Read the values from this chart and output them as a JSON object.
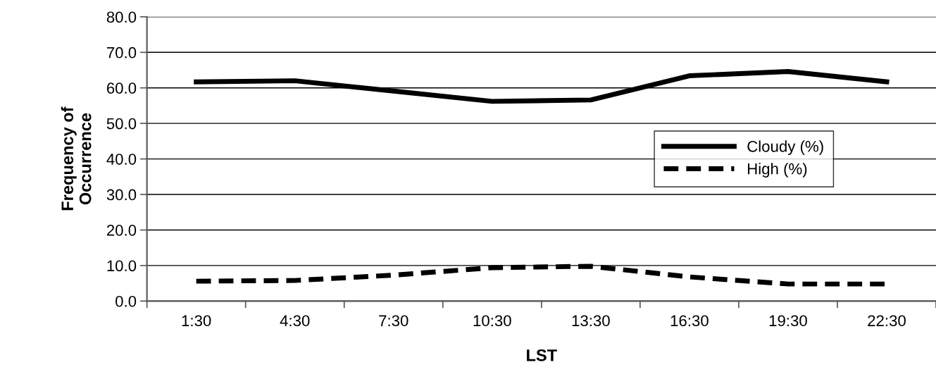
{
  "chart_data": {
    "type": "line",
    "xlabel": "LST",
    "ylabel": "Frequency of\nOccurrence",
    "categories": [
      "1:30",
      "4:30",
      "7:30",
      "10:30",
      "13:30",
      "16:30",
      "19:30",
      "22:30"
    ],
    "series": [
      {
        "name": "Cloudy (%)",
        "color": "#000000",
        "line_style": "solid",
        "values": [
          61.7,
          62.0,
          59.1,
          56.2,
          56.6,
          63.4,
          64.6,
          61.7
        ]
      },
      {
        "name": "High (%)",
        "color": "#000000",
        "line_style": "dashed",
        "values": [
          5.6,
          5.8,
          7.3,
          9.4,
          9.8,
          6.8,
          4.8,
          4.8
        ]
      }
    ],
    "ylim": [
      0,
      80
    ],
    "yticks": [
      {
        "value": 0,
        "label": "0.0"
      },
      {
        "value": 10,
        "label": "10.0"
      },
      {
        "value": 20,
        "label": "20.0"
      },
      {
        "value": 30,
        "label": "30.0"
      },
      {
        "value": 40,
        "label": "40.0"
      },
      {
        "value": 50,
        "label": "50.0"
      },
      {
        "value": 60,
        "label": "60.0"
      },
      {
        "value": 70,
        "label": "70.0"
      },
      {
        "value": 80,
        "label": "80.0"
      }
    ],
    "grid": "y",
    "legend": "right",
    "marker": "none"
  }
}
